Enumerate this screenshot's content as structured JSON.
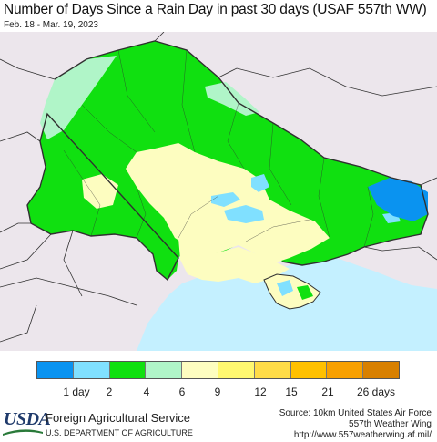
{
  "title": "Number of Days Since a Rain Day in past 30 days (USAF 557th WW)",
  "date_range": "Feb. 18 - Mar. 19, 2023",
  "legend": {
    "colors": [
      "#0a93f0",
      "#80e0ff",
      "#10e010",
      "#b0f5c8",
      "#fdfdc0",
      "#fff870",
      "#ffdc48",
      "#ffc000",
      "#f8a000",
      "#d88000"
    ],
    "labels": [
      "1 day",
      "2",
      "4",
      "6",
      "9",
      "12",
      "15",
      "21",
      "26 days"
    ]
  },
  "map_colors": {
    "background": "#ece6ec",
    "sea": "#c4f0ff",
    "border": "#303030"
  },
  "footer": {
    "logo": "USDA",
    "agency": "Foreign Agricultural Service",
    "department": "U.S. DEPARTMENT OF AGRICULTURE",
    "source_line1": "Source: 10km United States Air Force",
    "source_line2": "557th Weather Wing",
    "source_line3": "http://www.557weatherwing.af.mil/"
  }
}
